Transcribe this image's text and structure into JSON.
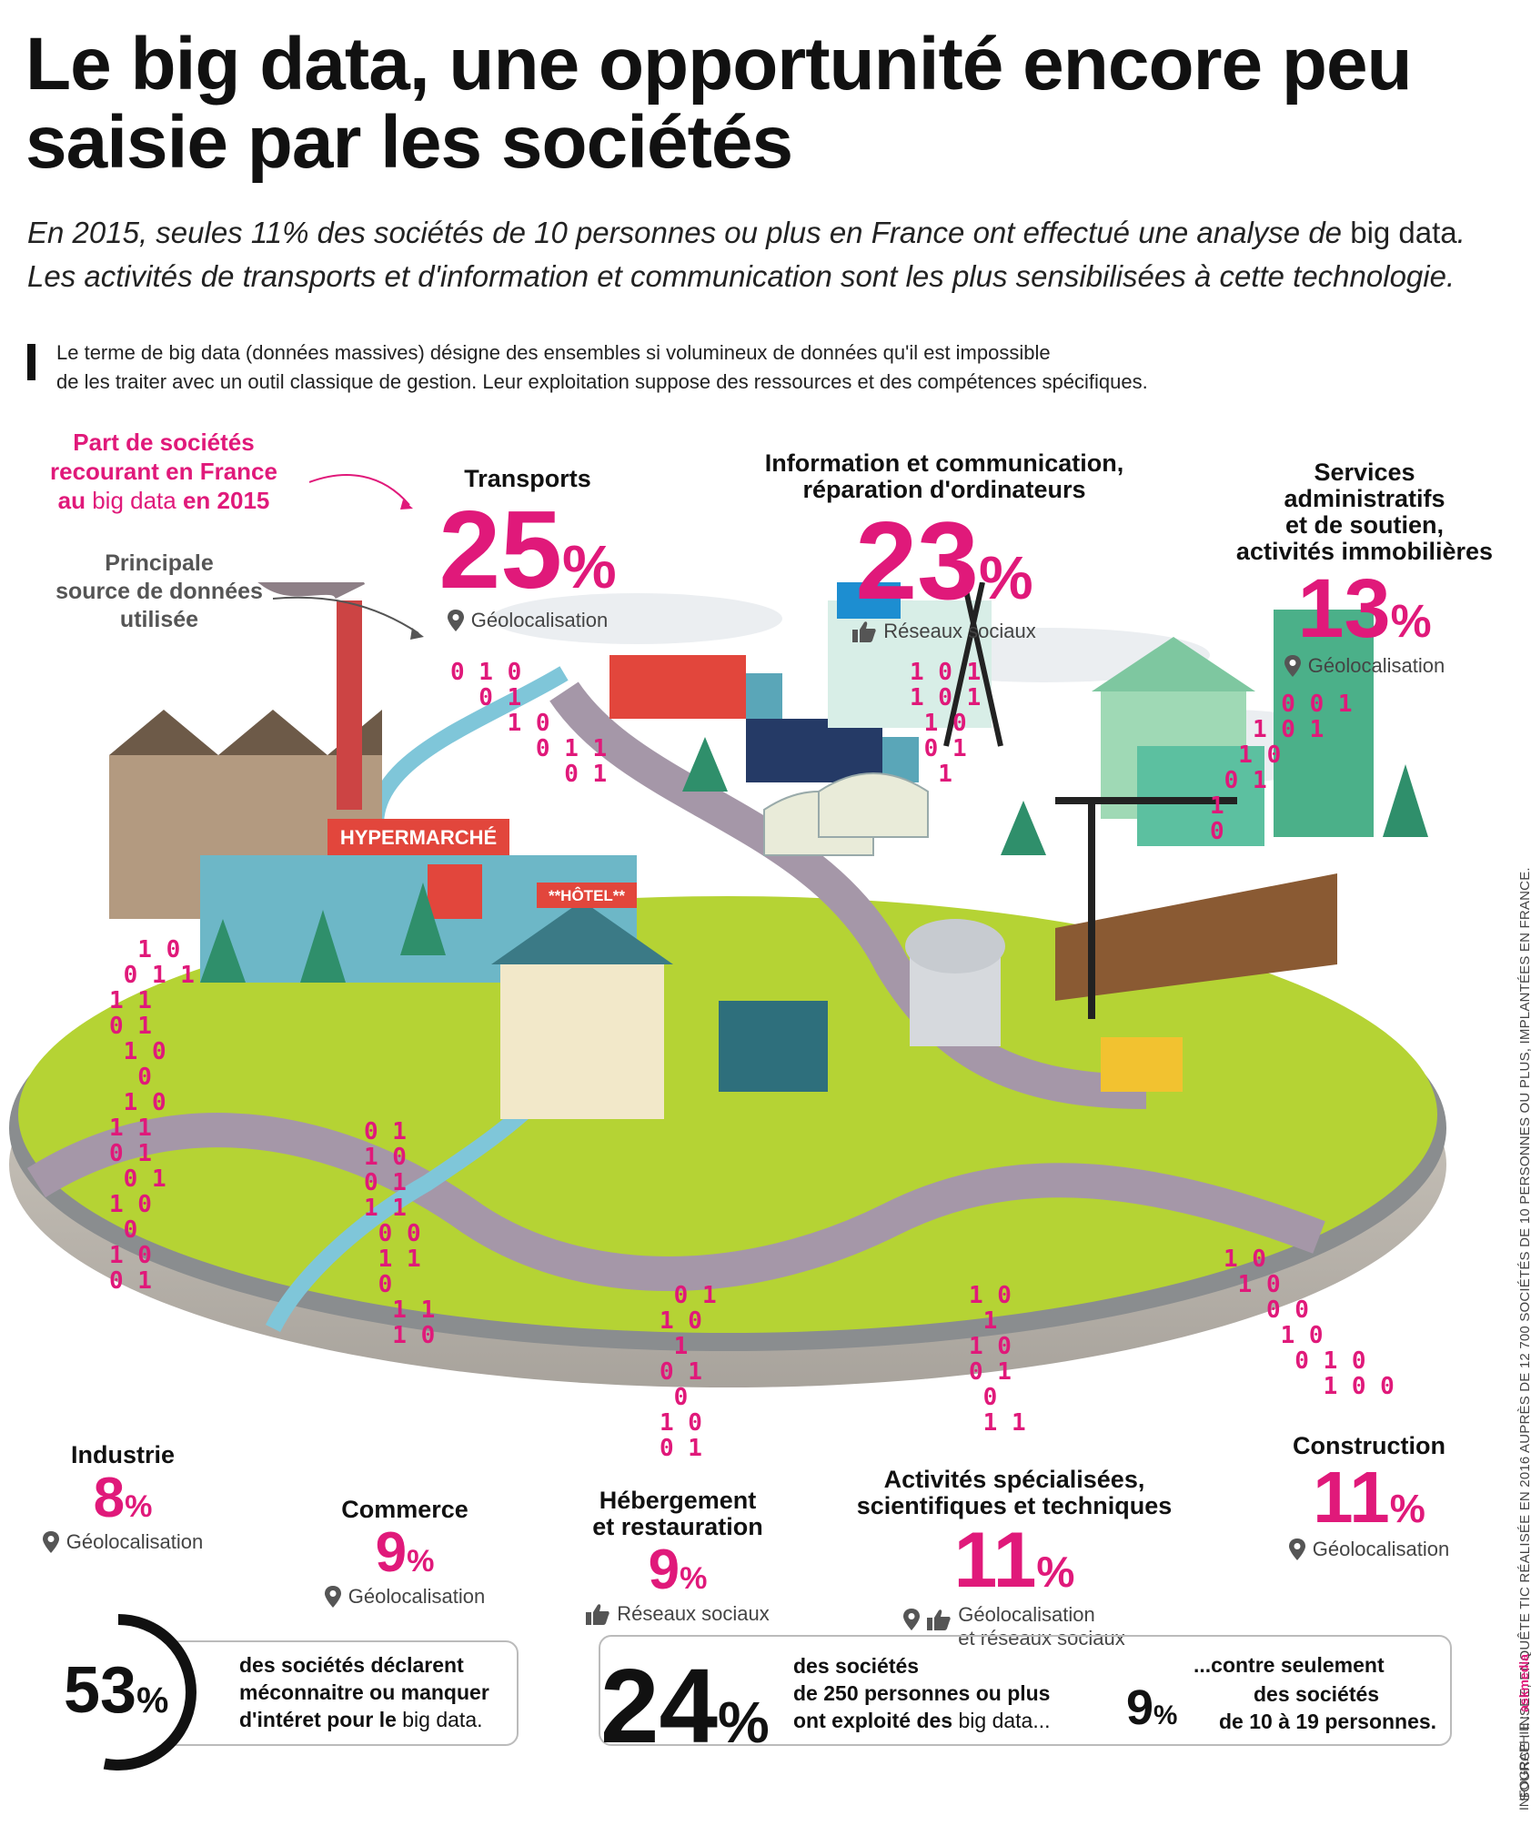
{
  "title": "Le big data, une opportunité encore peu saisie par les sociétés",
  "subtitle": {
    "line1_prefix": "En 2015, seules 11% des sociétés de 10 personnes ou plus en France ont effectué une analyse de ",
    "line1_em": "big data",
    "line1_suffix": ".",
    "line2": "Les activités de transports et d'information et communication sont les plus sensibilisées à cette technologie."
  },
  "definition": {
    "line1": "Le terme de big data (données massives) désigne des ensembles si volumineux de données qu'il est impossible",
    "line2": "de les traiter avec un outil classique de gestion. Leur exploitation suppose des ressources et des compétences spécifiques."
  },
  "legend": {
    "part_l1": "Part de sociétés",
    "part_l2": "recourant en France",
    "part_l3a": "au ",
    "part_l3b": "big data",
    "part_l3c": " en 2015",
    "source_l1": "Principale",
    "source_l2": "source de données",
    "source_l3": "utilisée"
  },
  "colors": {
    "accent": "#e0197a",
    "grass": "#b5d334",
    "road": "#a597a8",
    "water": "#7fc6d9"
  },
  "sectors": {
    "transports": {
      "name": "Transports",
      "value": "25",
      "unit": "%",
      "source": "Géolocalisation",
      "icon": "location-pin-icon"
    },
    "info": {
      "name_l1": "Information et communication,",
      "name_l2": "réparation d'ordinateurs",
      "value": "23",
      "unit": "%",
      "source": "Réseaux sociaux",
      "icon": "thumbs-up-icon"
    },
    "services": {
      "name_l1": "Services",
      "name_l2": "administratifs",
      "name_l3": "et de soutien,",
      "name_l4": "activités immobilières",
      "value": "13",
      "unit": "%",
      "source": "Géolocalisation",
      "icon": "location-pin-icon"
    },
    "industrie": {
      "name": "Industrie",
      "value": "8",
      "unit": "%",
      "source": "Géolocalisation",
      "icon": "location-pin-icon"
    },
    "commerce": {
      "name": "Commerce",
      "value": "9",
      "unit": "%",
      "source": "Géolocalisation",
      "icon": "location-pin-icon"
    },
    "hebergement": {
      "name_l1": "Hébergement",
      "name_l2": "et restauration",
      "value": "9",
      "unit": "%",
      "source": "Réseaux sociaux",
      "icon": "thumbs-up-icon"
    },
    "specialisees": {
      "name_l1": "Activités spécialisées,",
      "name_l2": "scientifiques et techniques",
      "value": "11",
      "unit": "%",
      "source_l1": "Géolocalisation",
      "source_l2": "et réseaux sociaux"
    },
    "construction": {
      "name": "Construction",
      "value": "11",
      "unit": "%",
      "source": "Géolocalisation",
      "icon": "location-pin-icon"
    }
  },
  "buildings": {
    "hypermarche": "HYPERMARCHÉ",
    "hotel": "**HÔTEL**"
  },
  "stats": {
    "s53": {
      "value": "53",
      "unit": "%",
      "fraction": 0.53,
      "l1": "des sociétés déclarent",
      "l2": "méconnaitre ou manquer",
      "l3a": "d'intéret pour le ",
      "l3b": "big data."
    },
    "s24": {
      "value": "24",
      "unit": "%",
      "l1": "des sociétés",
      "l2": "de 250 personnes ou plus",
      "l3a": "ont exploité des ",
      "l3b": "big data..."
    },
    "s9": {
      "lead": "...contre seulement",
      "value": "9",
      "unit": "%",
      "l1": "des sociétés",
      "l2": "de 10 à 19 personnes."
    }
  },
  "source_note": "SOURCE : INSEE, ENQUÊTE TIC RÉALISÉE EN 2016 AUPRÈS DE 12 700 SOCIÉTÉS DE 10 PERSONNES OU PLUS, IMPLANTÉES EN FRANCE.",
  "credit": {
    "prefix": "INFOGRAPHIE : ",
    "brand": "askmedia"
  }
}
